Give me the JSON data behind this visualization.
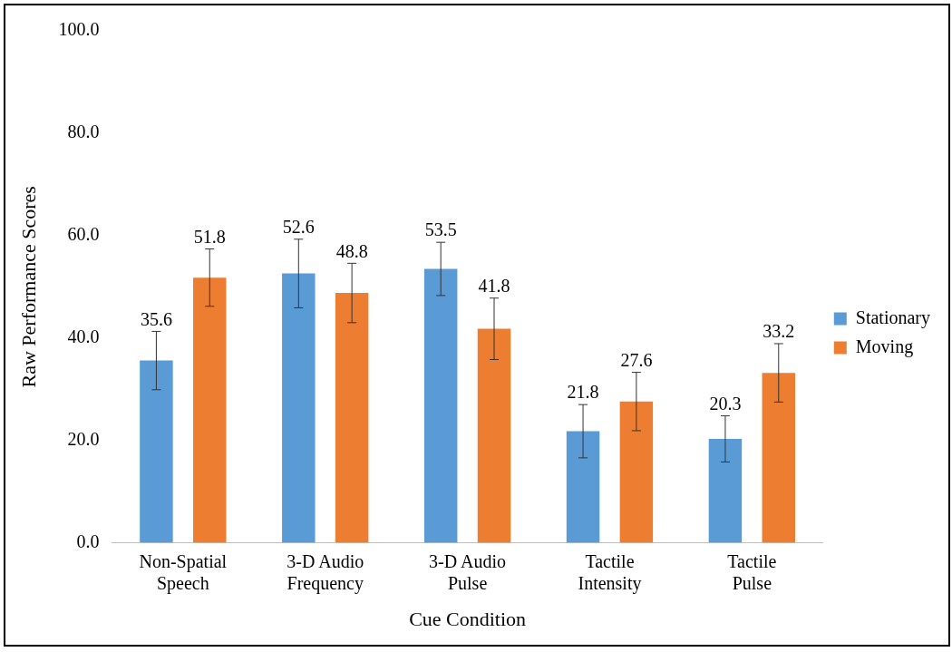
{
  "chart_data": {
    "type": "bar",
    "xlabel": "Cue Condition",
    "ylabel": "Raw Performance Scores",
    "categories": [
      "Non-Spatial Speech",
      "3-D Audio Frequency",
      "3-D Audio Pulse",
      "Tactile Intensity",
      "Tactile Pulse"
    ],
    "series": [
      {
        "name": "Stationary",
        "color": "#5b9bd5",
        "values": [
          35.6,
          52.6,
          53.5,
          21.8,
          20.3
        ],
        "errors": [
          5.7,
          6.7,
          5.2,
          5.2,
          4.5
        ]
      },
      {
        "name": "Moving",
        "color": "#ed7d31",
        "values": [
          51.8,
          48.8,
          41.8,
          27.6,
          33.2
        ],
        "errors": [
          5.6,
          5.8,
          6.0,
          5.7,
          5.7
        ]
      }
    ],
    "ylim": [
      0,
      100
    ],
    "yticks": [
      {
        "value": 0,
        "label": "0.0"
      },
      {
        "value": 20,
        "label": "20.0"
      },
      {
        "value": 40,
        "label": "40.0"
      },
      {
        "value": 60,
        "label": "60.0"
      },
      {
        "value": 80,
        "label": "80.0"
      },
      {
        "value": 100,
        "label": "100.0"
      }
    ],
    "data_labels": true,
    "grid": false,
    "legend": "right"
  }
}
